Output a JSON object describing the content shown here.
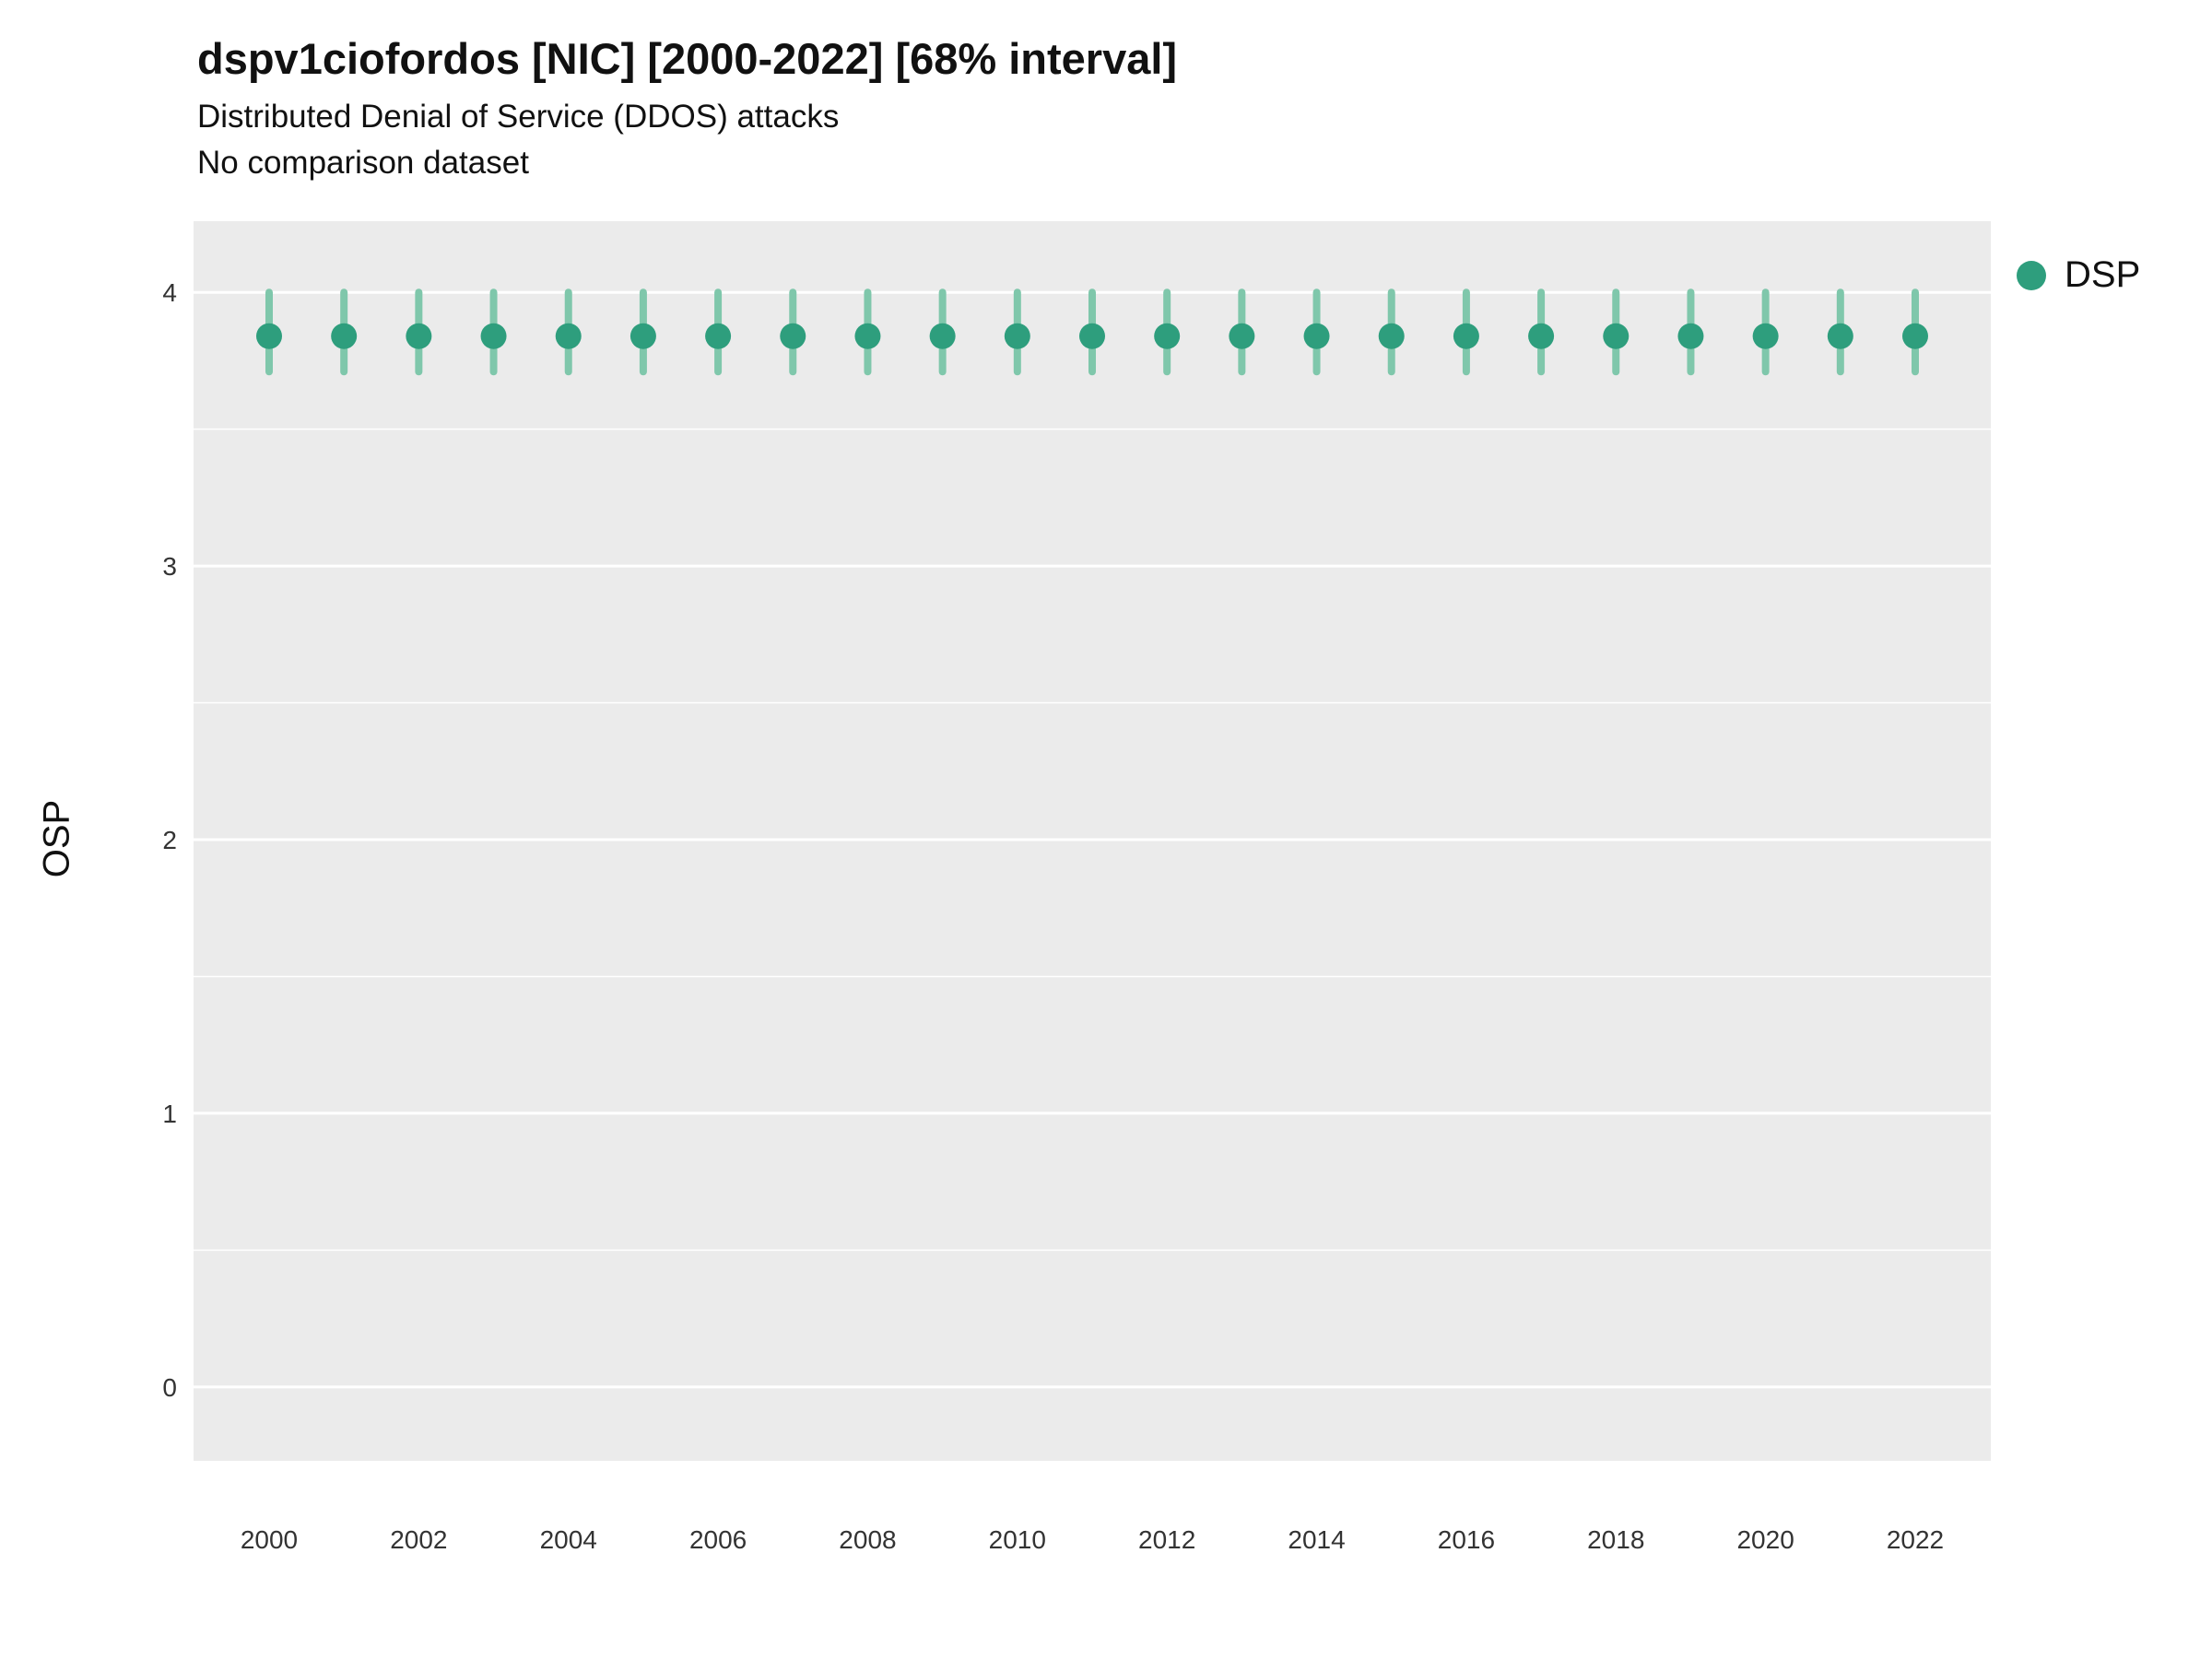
{
  "header": {
    "title": "dspv1ciofordos [NIC] [2000-2022] [68% interval]",
    "subtitle": "Distributed Denial of Service (DDOS) attacks",
    "subtitle2": "No comparison dataset"
  },
  "y_axis_label": "OSP",
  "legend": {
    "label": "DSP"
  },
  "chart_data": {
    "type": "scatter",
    "title": "dspv1ciofordos [NIC] [2000-2022] [68% interval]",
    "subtitle": "Distributed Denial of Service (DDOS) attacks",
    "note": "No comparison dataset",
    "xlabel": "",
    "ylabel": "OSP",
    "legend_position": "right",
    "grid": true,
    "interval_level": "68%",
    "x": [
      2000,
      2001,
      2002,
      2003,
      2004,
      2005,
      2006,
      2007,
      2008,
      2009,
      2010,
      2011,
      2012,
      2013,
      2014,
      2015,
      2016,
      2017,
      2018,
      2019,
      2020,
      2021,
      2022
    ],
    "series": [
      {
        "name": "DSP",
        "values": [
          3.84,
          3.84,
          3.84,
          3.84,
          3.84,
          3.84,
          3.84,
          3.84,
          3.84,
          3.84,
          3.84,
          3.84,
          3.84,
          3.84,
          3.84,
          3.84,
          3.84,
          3.84,
          3.84,
          3.84,
          3.84,
          3.84,
          3.84
        ],
        "interval_low": [
          3.71,
          3.71,
          3.71,
          3.71,
          3.71,
          3.71,
          3.71,
          3.71,
          3.71,
          3.71,
          3.71,
          3.71,
          3.71,
          3.71,
          3.71,
          3.71,
          3.71,
          3.71,
          3.71,
          3.71,
          3.71,
          3.71,
          3.71
        ],
        "interval_high": [
          4.0,
          4.0,
          4.0,
          4.0,
          4.0,
          4.0,
          4.0,
          4.0,
          4.0,
          4.0,
          4.0,
          4.0,
          4.0,
          4.0,
          4.0,
          4.0,
          4.0,
          4.0,
          4.0,
          4.0,
          4.0,
          4.0,
          4.0
        ]
      }
    ],
    "x_tick_labels": [
      "2000",
      "2002",
      "2004",
      "2006",
      "2008",
      "2010",
      "2012",
      "2014",
      "2016",
      "2018",
      "2020",
      "2022"
    ],
    "y_ticks": [
      0,
      1,
      2,
      3,
      4
    ],
    "ylim": [
      -0.27,
      4.26
    ],
    "colors": {
      "point": "#2E9E7D",
      "interval": "#7FC7AB",
      "panel_bg": "#EBEBEB",
      "grid": "#FFFFFF",
      "tick_text": "#333333"
    }
  }
}
